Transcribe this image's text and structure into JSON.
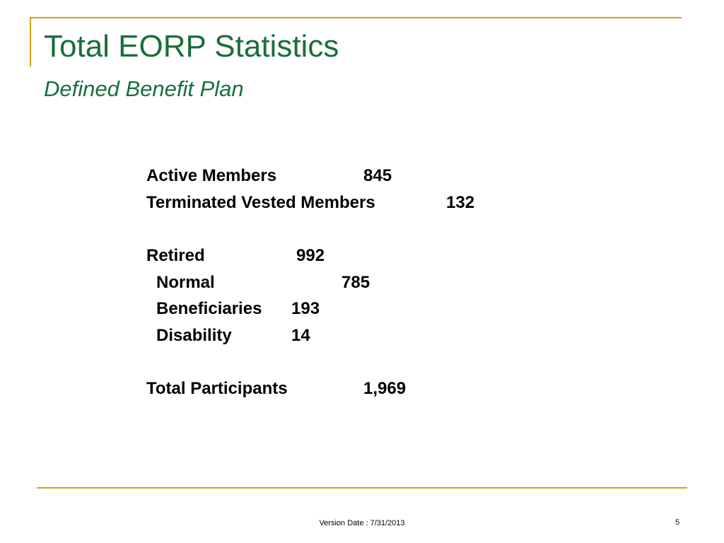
{
  "slide": {
    "title": "Total EORP Statistics",
    "subtitle": "Defined Benefit Plan",
    "stats": {
      "active_label": "Active Members",
      "active_value": "845",
      "terminated_label": "Terminated Vested Members",
      "terminated_value": "132",
      "retired_label": "Retired",
      "retired_value": "992",
      "normal_label": "Normal",
      "normal_value": "785",
      "beneficiaries_label": "Beneficiaries",
      "beneficiaries_value": "193",
      "disability_label": "Disability",
      "disability_value": "14",
      "total_label": "Total Participants",
      "total_value": "1,969"
    },
    "footer": {
      "version": "Version Date : 7/31/2013",
      "page": "5"
    },
    "colors": {
      "title": "#1a6e3a",
      "accent_rule": "#d4a015"
    }
  }
}
